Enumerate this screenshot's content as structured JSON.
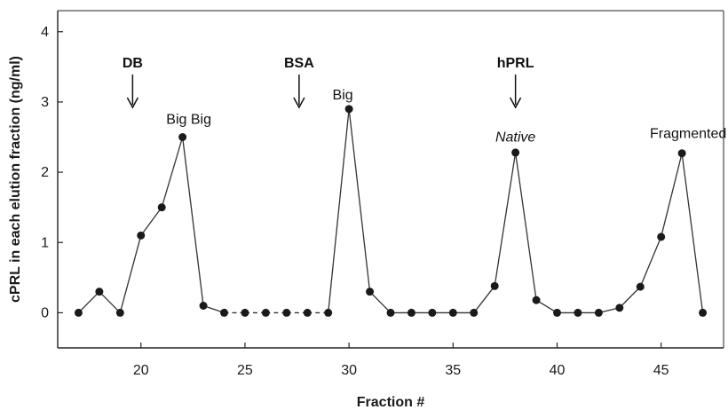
{
  "chart_data": {
    "type": "line",
    "xlabel": "Fraction #",
    "ylabel": "cPRL in each elution fraction (ng/ml)",
    "xlim": [
      16,
      48
    ],
    "ylim": [
      -0.5,
      4.3
    ],
    "xticks": [
      20,
      25,
      30,
      35,
      40,
      45
    ],
    "yticks": [
      0,
      1,
      2,
      3,
      4
    ],
    "grid": false,
    "series": [
      {
        "points": [
          {
            "x": 17,
            "y": 0.0
          },
          {
            "x": 18,
            "y": 0.3
          },
          {
            "x": 19,
            "y": 0.0
          },
          {
            "x": 20,
            "y": 1.1
          },
          {
            "x": 21,
            "y": 1.5
          },
          {
            "x": 22,
            "y": 2.5
          },
          {
            "x": 23,
            "y": 0.1
          },
          {
            "x": 24,
            "y": 0.0
          },
          {
            "x": 25,
            "y": 0.0
          },
          {
            "x": 26,
            "y": 0.0
          },
          {
            "x": 27,
            "y": 0.0
          },
          {
            "x": 28,
            "y": 0.0
          },
          {
            "x": 29,
            "y": 0.0
          },
          {
            "x": 30,
            "y": 2.9
          },
          {
            "x": 31,
            "y": 0.3
          },
          {
            "x": 32,
            "y": 0.0
          },
          {
            "x": 33,
            "y": 0.0
          },
          {
            "x": 34,
            "y": 0.0
          },
          {
            "x": 35,
            "y": 0.0
          },
          {
            "x": 36,
            "y": 0.0
          },
          {
            "x": 37,
            "y": 0.38
          },
          {
            "x": 38,
            "y": 2.28
          },
          {
            "x": 39,
            "y": 0.18
          },
          {
            "x": 40,
            "y": 0.0
          },
          {
            "x": 41,
            "y": 0.0
          },
          {
            "x": 42,
            "y": 0.0
          },
          {
            "x": 43,
            "y": 0.07
          },
          {
            "x": 44,
            "y": 0.37
          },
          {
            "x": 45,
            "y": 1.08
          },
          {
            "x": 46,
            "y": 2.27
          },
          {
            "x": 47,
            "y": 0.0
          }
        ]
      }
    ],
    "markers": [
      {
        "label": "DB",
        "x": 19.6
      },
      {
        "label": "BSA",
        "x": 27.6
      },
      {
        "label": "hPRL",
        "x": 38.0
      }
    ],
    "annotations": [
      {
        "text": "Big Big",
        "x": 22.3,
        "y": 2.75,
        "style": "normal"
      },
      {
        "text": "Big",
        "x": 29.7,
        "y": 3.1,
        "style": "normal"
      },
      {
        "text": "Native",
        "x": 38.0,
        "y": 2.5,
        "style": "italic"
      },
      {
        "text": "Fragmented",
        "x": 46.3,
        "y": 2.55,
        "style": "normal"
      }
    ]
  }
}
